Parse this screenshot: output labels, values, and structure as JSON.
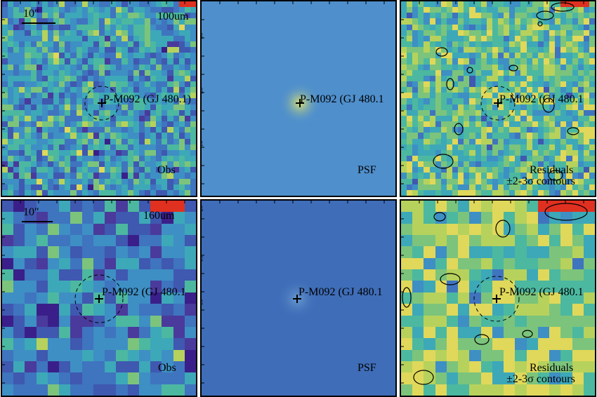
{
  "rows": [
    {
      "band_label": "100um",
      "scale_label": "10\"",
      "panels": [
        {
          "id": "obs",
          "corner_label": "Obs"
        },
        {
          "id": "psf",
          "corner_label": "PSF"
        },
        {
          "id": "res",
          "corner_label": "Residuals",
          "corner_label_2": "±2-3σ contours"
        }
      ]
    },
    {
      "band_label": "160um",
      "scale_label": "10\"",
      "panels": [
        {
          "id": "obs",
          "corner_label": "Obs"
        },
        {
          "id": "psf",
          "corner_label": "PSF"
        },
        {
          "id": "res",
          "corner_label": "Residuals",
          "corner_label_2": "±2-3σ contours"
        }
      ]
    }
  ],
  "source": {
    "obs_100": "P-M092 (GJ 480.1)",
    "psf_100": "P-M092 (GJ 480.1",
    "res_100": "P-M092 (GJ 480.1",
    "obs_160": "P-M092 (GJ 480.1",
    "psf_160": "P-M092 (GJ 480.1",
    "res_160": "P-M092 (GJ 480.1"
  },
  "axis_ticks": {
    "psf_100": [
      "30",
      "20",
      "10"
    ],
    "psf_160": [
      "20",
      "15",
      "10",
      "5"
    ]
  },
  "colors": {
    "frame": "#000000",
    "psf_top": "#4f8fcc",
    "psf_bottom": "#3f6db8",
    "hot_red": "#e03020"
  }
}
